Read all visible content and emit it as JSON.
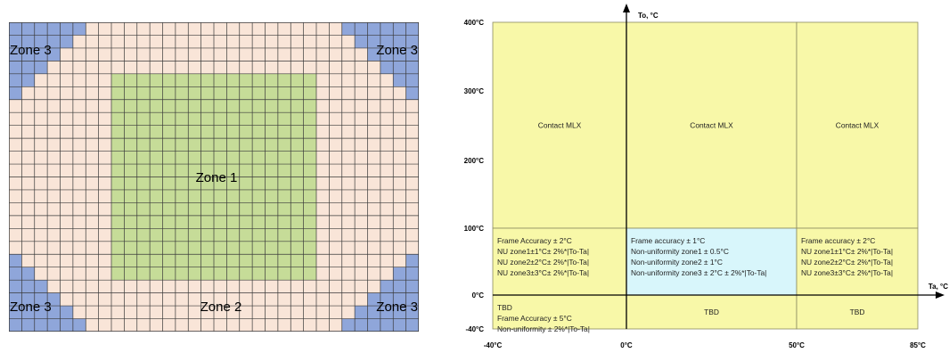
{
  "zone_map": {
    "grid": {
      "columns": 32,
      "rows": 24
    },
    "colors": {
      "zone1": "#c6dc98",
      "zone2": "#f9e5d8",
      "zone3": "#8fa6da",
      "grid_line": "#3a3a3a"
    },
    "labels": {
      "zone1": "Zone 1",
      "zone2": "Zone 2",
      "zone3_top_left": "Zone 3",
      "zone3_top_right": "Zone 3",
      "zone3_bottom_left": "Zone 3",
      "zone3_bottom_right": "Zone 3"
    }
  },
  "accuracy_chart": {
    "x_axis_label": "Ta, °C",
    "y_axis_label": "To, °C",
    "x_ticks": [
      {
        "value": -40,
        "label": "-40°C"
      },
      {
        "value": 0,
        "label": "0°C"
      },
      {
        "value": 50,
        "label": "50°C"
      },
      {
        "value": 85,
        "label": "85°C"
      }
    ],
    "y_ticks": [
      {
        "value": -40,
        "label": "-40°C"
      },
      {
        "value": 0,
        "label": "0°C"
      },
      {
        "value": 100,
        "label": "100°C"
      },
      {
        "value": 200,
        "label": "200°C"
      },
      {
        "value": 300,
        "label": "300°C"
      },
      {
        "value": 400,
        "label": "400°C"
      }
    ],
    "colors": {
      "default_fill": "#f8f8a8",
      "highlight_fill": "#d8f6fb",
      "border": "#8a8a60"
    },
    "regions": [
      {
        "name": "region-upper-left",
        "ta": [
          -40,
          0
        ],
        "to": [
          100,
          400
        ],
        "fill": "default",
        "align": "center",
        "lines": [
          "Contact MLX"
        ]
      },
      {
        "name": "region-upper-middle",
        "ta": [
          0,
          50
        ],
        "to": [
          100,
          400
        ],
        "fill": "default",
        "align": "center",
        "lines": [
          "Contact MLX"
        ]
      },
      {
        "name": "region-upper-right",
        "ta": [
          50,
          85
        ],
        "to": [
          100,
          400
        ],
        "fill": "default",
        "align": "center",
        "lines": [
          "Contact MLX"
        ]
      },
      {
        "name": "region-mid-left",
        "ta": [
          -40,
          0
        ],
        "to": [
          0,
          100
        ],
        "fill": "default",
        "align": "left",
        "lines": [
          "Frame Accuracy ± 2°C",
          "NU zone1±1°C± 2%*|To-Ta|",
          "NU zone2±2°C± 2%*|To-Ta|",
          "NU zone3±3°C± 2%*|To-Ta|"
        ]
      },
      {
        "name": "region-mid-middle",
        "ta": [
          0,
          50
        ],
        "to": [
          0,
          100
        ],
        "fill": "highlight",
        "align": "left",
        "lines": [
          "Frame accuracy ± 1°C",
          "Non-uniformity zone1  ± 0.5°C",
          "Non-uniformity zone2  ± 1°C",
          "Non-uniformity zone3  ± 2°C ± 2%*|To-Ta|"
        ]
      },
      {
        "name": "region-mid-right",
        "ta": [
          50,
          85
        ],
        "to": [
          0,
          100
        ],
        "fill": "default",
        "align": "left",
        "lines": [
          "Frame accuracy ± 2°C",
          "NU zone1±1°C± 2%*|To-Ta|",
          "NU zone2±2°C± 2%*|To-Ta|",
          "NU zone3±3°C± 2%*|To-Ta|"
        ]
      },
      {
        "name": "region-low-left",
        "ta": [
          -40,
          0
        ],
        "to": [
          -40,
          0
        ],
        "fill": "default",
        "align": "left",
        "lines": [
          "TBD",
          "Frame Accuracy ± 5°C",
          "Non-uniformity ± 2%*|To-Ta|"
        ]
      },
      {
        "name": "region-low-middle",
        "ta": [
          0,
          50
        ],
        "to": [
          -40,
          0
        ],
        "fill": "default",
        "align": "center",
        "lines": [
          "TBD"
        ]
      },
      {
        "name": "region-low-right",
        "ta": [
          50,
          85
        ],
        "to": [
          -40,
          0
        ],
        "fill": "default",
        "align": "center",
        "lines": [
          "TBD"
        ]
      }
    ]
  }
}
